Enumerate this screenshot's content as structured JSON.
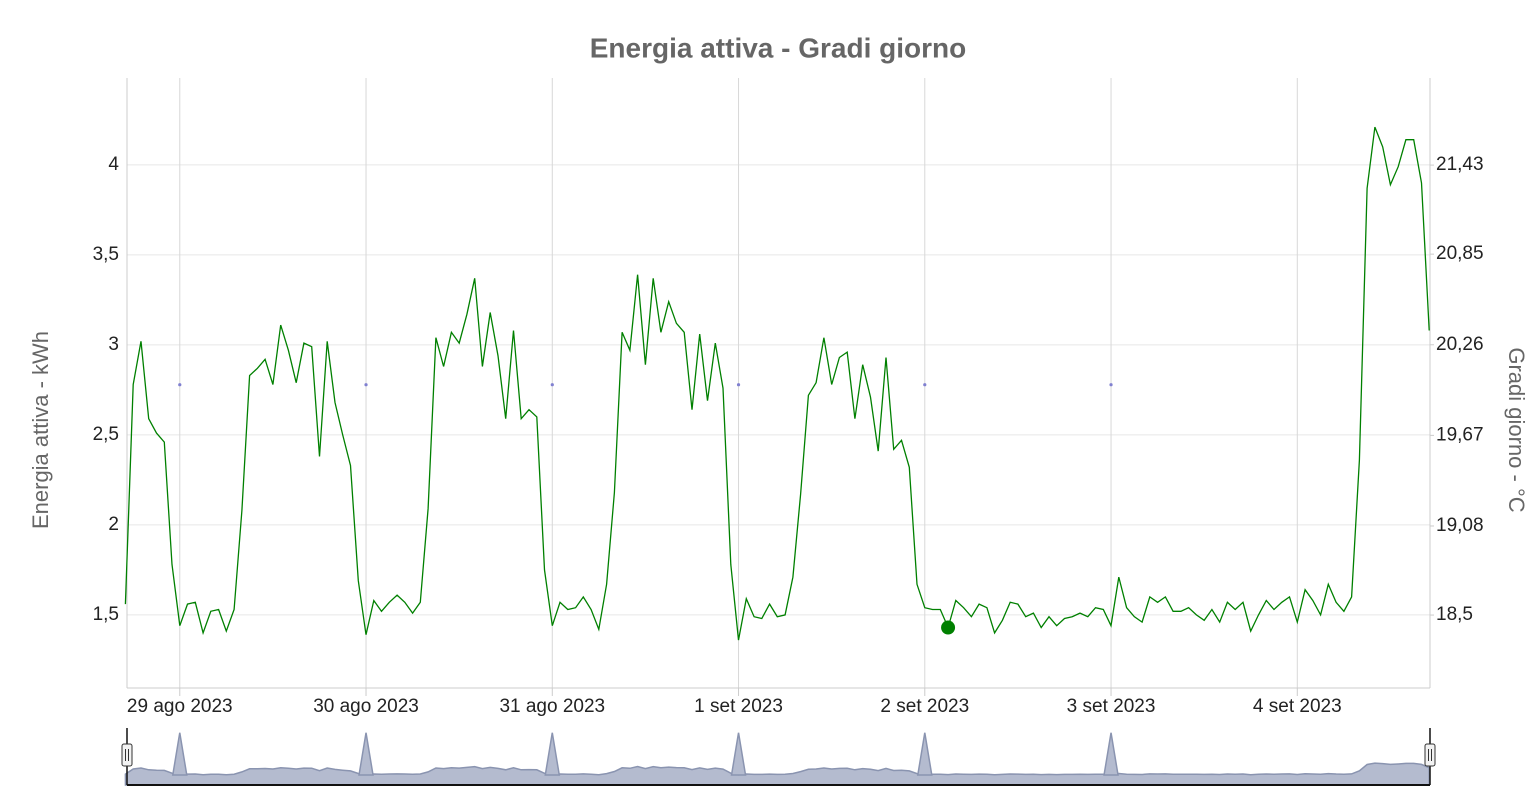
{
  "chart_data": {
    "type": "line",
    "title": "Energia attiva - Gradi giorno",
    "ylabel": "Energia attiva - kWh",
    "y2label": "Gradi giorno - °C",
    "xlim": [
      -6.8,
      161.1
    ],
    "xticks": [
      {
        "value": 0,
        "label": "29 ago 2023"
      },
      {
        "value": 24,
        "label": "30 ago 2023"
      },
      {
        "value": 48,
        "label": "31 ago 2023"
      },
      {
        "value": 72,
        "label": "1 set 2023"
      },
      {
        "value": 96,
        "label": "2 set 2023"
      },
      {
        "value": 120,
        "label": "3 set 2023"
      },
      {
        "value": 144,
        "label": "4 set 2023"
      }
    ],
    "ylim": [
      1.094,
      4.483
    ],
    "yticks": [
      {
        "value": 1.5,
        "label": "1,5"
      },
      2,
      {
        "value": 2.5,
        "label": "2,5"
      },
      3,
      {
        "value": 3.5,
        "label": "3,5"
      },
      4
    ],
    "y2lim": [
      18.025,
      21.997
    ],
    "y2ticks": [
      {
        "value": 18.5,
        "label": "18,5"
      },
      {
        "value": 19.08,
        "label": "19,08"
      },
      {
        "value": 19.67,
        "label": "19,67"
      },
      {
        "value": 20.26,
        "label": "20,26"
      },
      {
        "value": 20.85,
        "label": "20,85"
      },
      {
        "value": 21.43,
        "label": "21,43"
      }
    ],
    "grid": true,
    "navigator": true,
    "series": [
      {
        "color": "#008000",
        "highlighted_point": 106,
        "x": [
          -7,
          -6,
          -5,
          -4,
          -3,
          -2,
          -1,
          0,
          1,
          2,
          3,
          4,
          5,
          6,
          7,
          8,
          9,
          10,
          11,
          12,
          13,
          14,
          15,
          16,
          17,
          18,
          19,
          20,
          21,
          22,
          23,
          24,
          25,
          26,
          27,
          28,
          29,
          30,
          31,
          32,
          33,
          34,
          35,
          36,
          37,
          38,
          39,
          40,
          41,
          42,
          43,
          44,
          45,
          46,
          47,
          48,
          49,
          50,
          51,
          52,
          53,
          54,
          55,
          56,
          57,
          58,
          59,
          60,
          61,
          62,
          63,
          64,
          65,
          66,
          67,
          68,
          69,
          70,
          71,
          72,
          73,
          74,
          75,
          76,
          77,
          78,
          79,
          80,
          81,
          82,
          83,
          84,
          85,
          86,
          87,
          88,
          89,
          90,
          91,
          92,
          93,
          94,
          95,
          96,
          97,
          98,
          99,
          100,
          101,
          102,
          103,
          104,
          105,
          106,
          107,
          108,
          109,
          110,
          111,
          112,
          113,
          114,
          115,
          116,
          117,
          118,
          119,
          120,
          121,
          122,
          123,
          124,
          125,
          126,
          127,
          128,
          129,
          130,
          131,
          132,
          133,
          134,
          135,
          136,
          137,
          138,
          139,
          140,
          141,
          142,
          143,
          144,
          145,
          146,
          147,
          148,
          149,
          150,
          151,
          152,
          153,
          154,
          155,
          156,
          157,
          158,
          159,
          160,
          161
        ],
        "values": [
          1.56,
          2.78,
          3.02,
          2.59,
          2.51,
          2.46,
          1.78,
          1.44,
          1.56,
          1.57,
          1.4,
          1.52,
          1.53,
          1.41,
          1.53,
          2.08,
          2.83,
          2.87,
          2.92,
          2.78,
          3.11,
          2.97,
          2.79,
          3.01,
          2.99,
          2.38,
          3.02,
          2.68,
          2.5,
          2.33,
          1.69,
          1.39,
          1.58,
          1.52,
          1.57,
          1.61,
          1.57,
          1.51,
          1.57,
          2.09,
          3.04,
          2.88,
          3.07,
          3.01,
          3.17,
          3.37,
          2.88,
          3.18,
          2.94,
          2.59,
          3.08,
          2.59,
          2.64,
          2.6,
          1.75,
          1.44,
          1.57,
          1.53,
          1.54,
          1.6,
          1.53,
          1.42,
          1.67,
          2.18,
          3.07,
          2.97,
          3.39,
          2.89,
          3.37,
          3.07,
          3.24,
          3.12,
          3.07,
          2.64,
          3.06,
          2.69,
          3.01,
          2.76,
          1.78,
          1.36,
          1.59,
          1.49,
          1.48,
          1.56,
          1.49,
          1.5,
          1.71,
          2.17,
          2.72,
          2.79,
          3.04,
          2.78,
          2.93,
          2.96,
          2.59,
          2.89,
          2.71,
          2.41,
          2.93,
          2.42,
          2.47,
          2.32,
          1.67,
          1.54,
          1.53,
          1.53,
          1.43,
          1.58,
          1.54,
          1.49,
          1.56,
          1.54,
          1.4,
          1.47,
          1.57,
          1.56,
          1.49,
          1.51,
          1.43,
          1.49,
          1.44,
          1.48,
          1.49,
          1.51,
          1.49,
          1.54,
          1.53,
          1.44,
          1.71,
          1.54,
          1.49,
          1.46,
          1.6,
          1.57,
          1.6,
          1.52,
          1.52,
          1.54,
          1.5,
          1.47,
          1.53,
          1.46,
          1.57,
          1.53,
          1.57,
          1.41,
          1.5,
          1.58,
          1.53,
          1.57,
          1.6,
          1.46,
          1.64,
          1.58,
          1.5,
          1.67,
          1.57,
          1.52,
          1.6,
          2.36,
          3.87,
          4.21,
          4.1,
          3.89,
          3.99,
          4.14,
          4.14,
          3.9,
          3.08
        ]
      },
      {
        "color": "#8080d0",
        "axis": "y2",
        "x": [
          0,
          24,
          48,
          72,
          96,
          120
        ],
        "values": [
          20,
          20,
          20,
          20,
          20,
          20
        ]
      }
    ]
  }
}
